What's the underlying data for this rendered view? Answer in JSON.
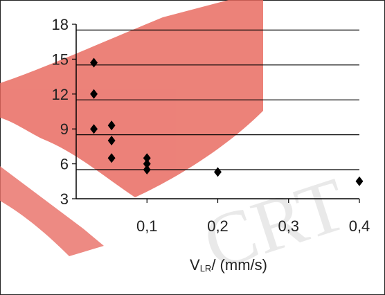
{
  "chart_data": {
    "type": "scatter",
    "title": "",
    "xlabel_main": "V",
    "xlabel_sub": "LR",
    "xlabel_rest": "/ (mm/s)",
    "ylabel": "",
    "xlim": [
      0,
      0.4
    ],
    "ylim": [
      3,
      18
    ],
    "x_ticks": [
      0.1,
      0.2,
      0.3,
      0.4
    ],
    "x_tick_labels": [
      "0,1",
      "0,2",
      "0,3",
      "0,4"
    ],
    "y_ticks": [
      3,
      6,
      9,
      12,
      15,
      18
    ],
    "y_tick_labels": [
      "3",
      "6",
      "9",
      "12",
      "15",
      "18"
    ],
    "gridlines_y": [
      5.5,
      8.5,
      11.5,
      14.5,
      17.5
    ],
    "grid": "horizontal",
    "marker": "diamond",
    "marker_color": "#000000",
    "grid_color": "#000000",
    "watermark_color": "#e8665c",
    "series": [
      {
        "points": [
          {
            "x": 0.025,
            "y": 14.7
          },
          {
            "x": 0.025,
            "y": 12.0
          },
          {
            "x": 0.025,
            "y": 9.0
          },
          {
            "x": 0.05,
            "y": 9.3
          },
          {
            "x": 0.05,
            "y": 8.0
          },
          {
            "x": 0.05,
            "y": 6.5
          },
          {
            "x": 0.1,
            "y": 6.5
          },
          {
            "x": 0.1,
            "y": 6.0
          },
          {
            "x": 0.1,
            "y": 5.5
          },
          {
            "x": 0.2,
            "y": 5.3
          },
          {
            "x": 0.4,
            "y": 4.5
          }
        ]
      }
    ]
  }
}
